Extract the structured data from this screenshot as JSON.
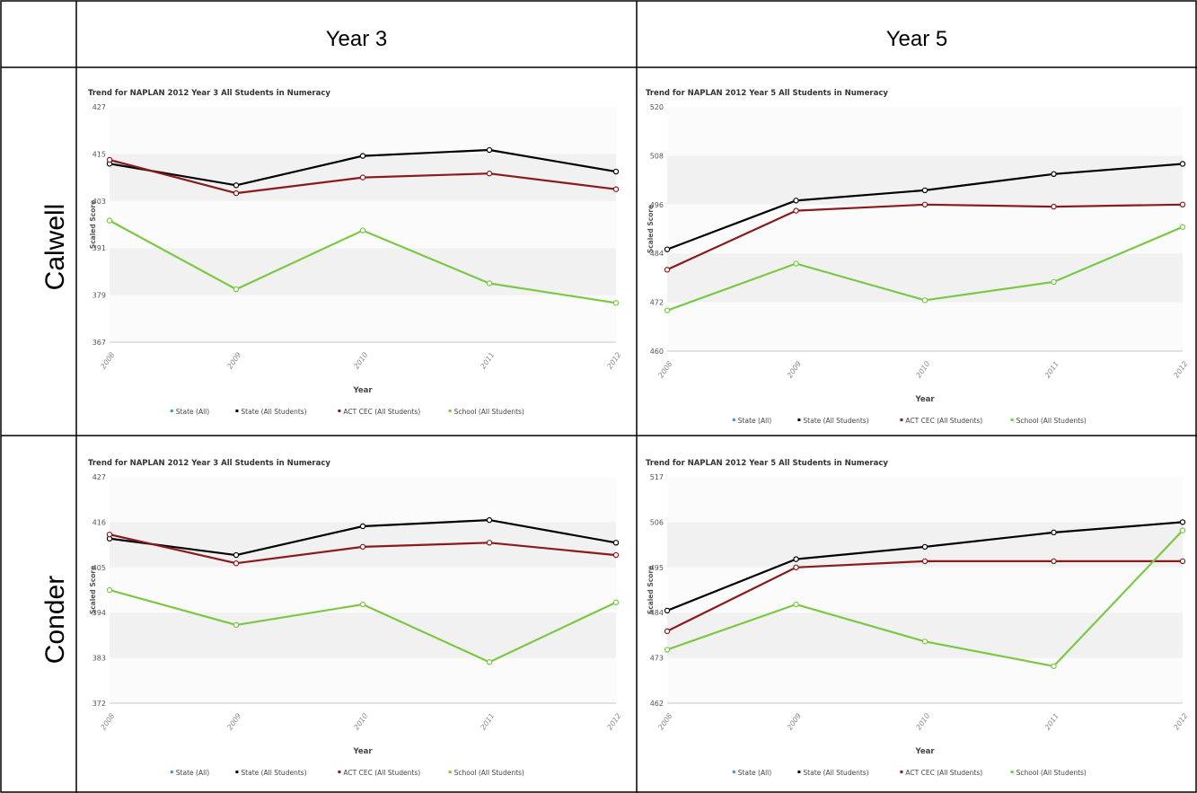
{
  "table": {
    "columns": [
      "Year 3",
      "Year 5"
    ],
    "rows": [
      "Calwell",
      "Conder"
    ]
  },
  "legend_colors": {
    "State (All)": "#4a90d9",
    "State (All Students)": "#000000",
    "ACT CEC (All Students)": "#8b1a1a",
    "School (All Students)": "#7ac943"
  },
  "chart_data": [
    {
      "type": "line",
      "title": "Trend for NAPLAN 2012 Year 3 All Students in Numeracy",
      "xlabel": "Year",
      "ylabel": "Scaled Score",
      "x": [
        "2008",
        "2009",
        "2010",
        "2011",
        "2012"
      ],
      "yticks": [
        367,
        379,
        391,
        403,
        415,
        427
      ],
      "ylim": [
        367,
        427
      ],
      "grid": true,
      "legend": "bottom",
      "legend_entries": [
        "State (All)",
        "State (All Students)",
        "ACT CEC (All Students)",
        "School (All Students)"
      ],
      "series": [
        {
          "name": "State (All Students)",
          "color": "#000000",
          "values": [
            412.5,
            407,
            414.5,
            416,
            410.5
          ]
        },
        {
          "name": "ACT CEC (All Students)",
          "color": "#8b1a1a",
          "values": [
            413.5,
            405,
            409,
            410,
            406
          ]
        },
        {
          "name": "School (All Students)",
          "color": "#7ac943",
          "values": [
            398,
            380.5,
            395.5,
            382,
            377
          ]
        }
      ]
    },
    {
      "type": "line",
      "title": "Trend for NAPLAN 2012 Year 5 All Students in Numeracy",
      "xlabel": "Year",
      "ylabel": "Scaled Score",
      "x": [
        "2008",
        "2009",
        "2010",
        "2011",
        "2012"
      ],
      "yticks": [
        460,
        472,
        484,
        496,
        508,
        520
      ],
      "ylim": [
        460,
        520
      ],
      "grid": true,
      "legend": "bottom",
      "legend_entries": [
        "State (All)",
        "State (All Students)",
        "ACT CEC (All Students)",
        "School (All Students)"
      ],
      "series": [
        {
          "name": "State (All Students)",
          "color": "#000000",
          "values": [
            485,
            497,
            499.5,
            503.5,
            506
          ]
        },
        {
          "name": "ACT CEC (All Students)",
          "color": "#8b1a1a",
          "values": [
            480,
            494.5,
            496,
            495.5,
            496
          ]
        },
        {
          "name": "School (All Students)",
          "color": "#7ac943",
          "values": [
            470,
            481.5,
            472.5,
            477,
            490.5
          ]
        }
      ]
    },
    {
      "type": "line",
      "title": "Trend for NAPLAN 2012 Year 3 All Students in Numeracy",
      "xlabel": "Year",
      "ylabel": "Scaled Score",
      "x": [
        "2008",
        "2009",
        "2010",
        "2011",
        "2012"
      ],
      "yticks": [
        372,
        383,
        394,
        405,
        416,
        427
      ],
      "ylim": [
        372,
        427
      ],
      "grid": true,
      "legend": "bottom",
      "legend_entries": [
        "State (All)",
        "State (All Students)",
        "ACT CEC (All Students)",
        "School (All Students)"
      ],
      "series": [
        {
          "name": "State (All Students)",
          "color": "#000000",
          "values": [
            412,
            408,
            415,
            416.5,
            411
          ]
        },
        {
          "name": "ACT CEC (All Students)",
          "color": "#8b1a1a",
          "values": [
            413,
            406,
            410,
            411,
            408
          ]
        },
        {
          "name": "School (All Students)",
          "color": "#7ac943",
          "values": [
            399.5,
            391,
            396,
            382,
            396.5
          ]
        }
      ]
    },
    {
      "type": "line",
      "title": "Trend for NAPLAN 2012 Year 5 All Students in Numeracy",
      "xlabel": "Year",
      "ylabel": "Scaled Score",
      "x": [
        "2008",
        "2009",
        "2010",
        "2011",
        "2012"
      ],
      "yticks": [
        462,
        473,
        484,
        495,
        506,
        517
      ],
      "ylim": [
        462,
        517
      ],
      "grid": true,
      "legend": "bottom",
      "legend_entries": [
        "State (All)",
        "State (All Students)",
        "ACT CEC (All Students)",
        "School (All Students)"
      ],
      "series": [
        {
          "name": "State (All Students)",
          "color": "#000000",
          "values": [
            484.5,
            497,
            500,
            503.5,
            506
          ]
        },
        {
          "name": "ACT CEC (All Students)",
          "color": "#8b1a1a",
          "values": [
            479.5,
            495,
            496.5,
            496.5,
            496.5
          ]
        },
        {
          "name": "School (All Students)",
          "color": "#7ac943",
          "values": [
            475,
            486,
            477,
            471,
            504
          ]
        }
      ]
    }
  ]
}
